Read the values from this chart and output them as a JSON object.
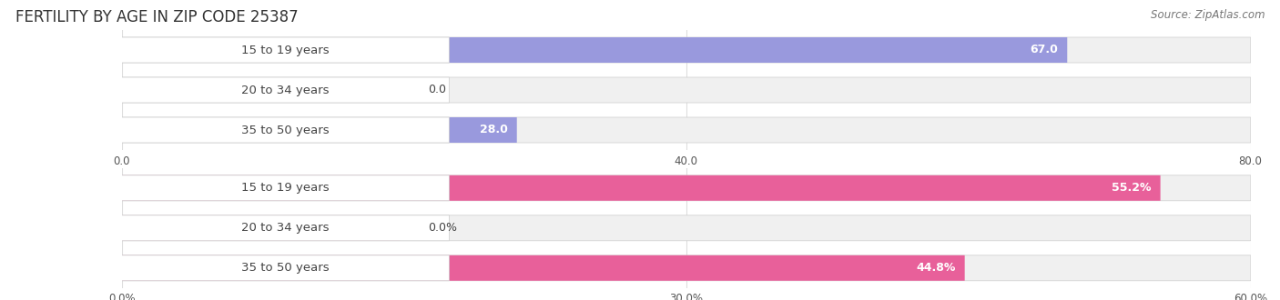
{
  "title": "FERTILITY BY AGE IN ZIP CODE 25387",
  "source": "Source: ZipAtlas.com",
  "top_chart": {
    "categories": [
      "15 to 19 years",
      "20 to 34 years",
      "35 to 50 years"
    ],
    "values": [
      67.0,
      0.0,
      28.0
    ],
    "xlim": [
      0,
      80.0
    ],
    "xticks": [
      0.0,
      40.0,
      80.0
    ],
    "xtick_labels": [
      "0.0",
      "40.0",
      "80.0"
    ],
    "bar_color": "#9999dd",
    "label_pill_color": "#c8c8ee",
    "zero_bar_color": "#c0c0e0"
  },
  "bottom_chart": {
    "categories": [
      "15 to 19 years",
      "20 to 34 years",
      "35 to 50 years"
    ],
    "values": [
      55.2,
      0.0,
      44.8
    ],
    "xlim": [
      0,
      60.0
    ],
    "xticks": [
      0.0,
      30.0,
      60.0
    ],
    "xtick_labels": [
      "0.0%",
      "30.0%",
      "60.0%"
    ],
    "bar_color": "#e8609a",
    "label_pill_color": "#f0a0c0",
    "zero_bar_color": "#f0b0c8"
  },
  "label_fontsize": 9.5,
  "value_fontsize": 9.0,
  "title_fontsize": 12,
  "source_fontsize": 8.5,
  "background_color": "#ffffff",
  "bar_height": 0.62,
  "label_color": "#444444",
  "grid_color": "#dddddd",
  "bar_bg_color": "#f0f0f0"
}
